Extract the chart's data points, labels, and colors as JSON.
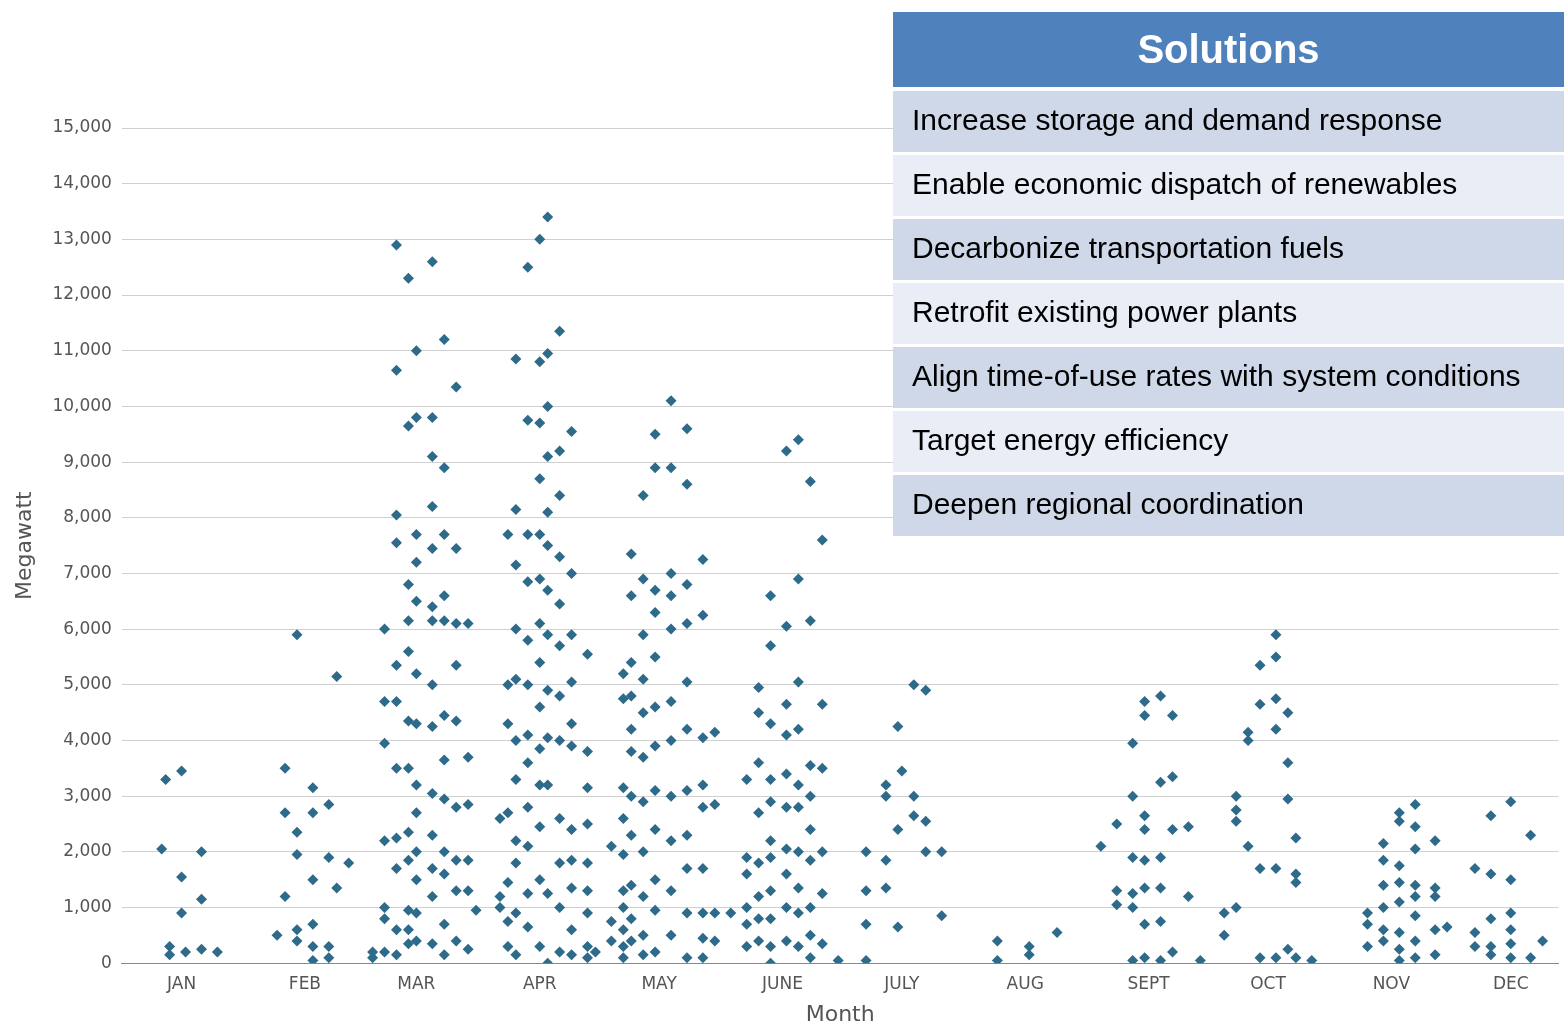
{
  "chart_data": [
    {
      "type": "scatter",
      "xlabel": "Month",
      "ylabel": "Megawatt",
      "xlim": [
        "--01-01",
        "--12-28"
      ],
      "ylim": [
        0,
        15000
      ],
      "xticks": [
        {
          "value": "--01-16",
          "label": "JAN"
        },
        {
          "value": "--02-16",
          "label": "FEB"
        },
        {
          "value": "--03-16",
          "label": "MAR"
        },
        {
          "value": "--04-16",
          "label": "APR"
        },
        {
          "value": "--05-16",
          "label": "MAY"
        },
        {
          "value": "--06-16",
          "label": "JUNE"
        },
        {
          "value": "--07-16",
          "label": "JULY"
        },
        {
          "value": "--08-16",
          "label": "AUG"
        },
        {
          "value": "--09-16",
          "label": "SEPT"
        },
        {
          "value": "--10-16",
          "label": "OCT"
        },
        {
          "value": "--11-16",
          "label": "NOV"
        },
        {
          "value": "--12-16",
          "label": "DEC"
        }
      ],
      "yticks": [
        {
          "value": 0,
          "label": "0"
        },
        {
          "value": 1000,
          "label": "1,000"
        },
        {
          "value": 2000,
          "label": "2,000"
        },
        {
          "value": 3000,
          "label": "3,000"
        },
        {
          "value": 4000,
          "label": "4,000"
        },
        {
          "value": 5000,
          "label": "5,000"
        },
        {
          "value": 6000,
          "label": "6,000"
        },
        {
          "value": 7000,
          "label": "7,000"
        },
        {
          "value": 8000,
          "label": "8,000"
        },
        {
          "value": 9000,
          "label": "9,000"
        },
        {
          "value": 10000,
          "label": "10,000"
        },
        {
          "value": 11000,
          "label": "11,000"
        },
        {
          "value": 12000,
          "label": "12,000"
        },
        {
          "value": 13000,
          "label": "13,000"
        },
        {
          "value": 14000,
          "label": "14,000"
        },
        {
          "value": 15000,
          "label": "15,000"
        }
      ],
      "grid": "y",
      "marker": "diamond",
      "legend": false,
      "series": [
        {
          "color": "#2e6a8a",
          "x": [
            "--01-11",
            "--01-12",
            "--01-16",
            "--01-13",
            "--01-13",
            "--01-16",
            "--01-16",
            "--01-17",
            "--01-21",
            "--01-21",
            "--01-21",
            "--01-25",
            "--02-09",
            "--02-11",
            "--02-11",
            "--02-11",
            "--02-14",
            "--02-14",
            "--02-14",
            "--02-14",
            "--02-14",
            "--02-18",
            "--02-18",
            "--02-18",
            "--02-18",
            "--02-18",
            "--02-18",
            "--02-22",
            "--02-22",
            "--02-22",
            "--02-22",
            "--02-24",
            "--02-24",
            "--02-27",
            "--03-05",
            "--03-05",
            "--03-08",
            "--03-08",
            "--03-08",
            "--03-08",
            "--03-08",
            "--03-08",
            "--03-08",
            "--03-11",
            "--03-11",
            "--03-11",
            "--03-11",
            "--03-11",
            "--03-11",
            "--03-11",
            "--03-11",
            "--03-11",
            "--03-11",
            "--03-11",
            "--03-14",
            "--03-14",
            "--03-14",
            "--03-14",
            "--03-14",
            "--03-14",
            "--03-14",
            "--03-14",
            "--03-14",
            "--03-14",
            "--03-14",
            "--03-14",
            "--03-16",
            "--03-16",
            "--03-16",
            "--03-16",
            "--03-16",
            "--03-16",
            "--03-16",
            "--03-16",
            "--03-16",
            "--03-16",
            "--03-16",
            "--03-16",
            "--03-16",
            "--03-20",
            "--03-20",
            "--03-20",
            "--03-20",
            "--03-20",
            "--03-20",
            "--03-20",
            "--03-20",
            "--03-20",
            "--03-20",
            "--03-20",
            "--03-20",
            "--03-20",
            "--03-20",
            "--03-23",
            "--03-23",
            "--03-23",
            "--03-23",
            "--03-23",
            "--03-23",
            "--03-23",
            "--03-23",
            "--03-23",
            "--03-23",
            "--03-23",
            "--03-23",
            "--03-26",
            "--03-26",
            "--03-26",
            "--03-26",
            "--03-26",
            "--03-26",
            "--03-26",
            "--03-26",
            "--03-26",
            "--03-29",
            "--03-29",
            "--03-29",
            "--03-29",
            "--03-29",
            "--03-29",
            "--03-31",
            "--04-06",
            "--04-06",
            "--04-06",
            "--04-08",
            "--04-08",
            "--04-08",
            "--04-08",
            "--04-08",
            "--04-08",
            "--04-08",
            "--04-10",
            "--04-10",
            "--04-10",
            "--04-10",
            "--04-10",
            "--04-10",
            "--04-10",
            "--04-10",
            "--04-10",
            "--04-10",
            "--04-10",
            "--04-13",
            "--04-13",
            "--04-13",
            "--04-13",
            "--04-13",
            "--04-13",
            "--04-13",
            "--04-13",
            "--04-13",
            "--04-13",
            "--04-13",
            "--04-13",
            "--04-16",
            "--04-16",
            "--04-16",
            "--04-16",
            "--04-16",
            "--04-16",
            "--04-16",
            "--04-16",
            "--04-16",
            "--04-16",
            "--04-16",
            "--04-16",
            "--04-16",
            "--04-16",
            "--04-18",
            "--04-18",
            "--04-18",
            "--04-18",
            "--04-18",
            "--04-18",
            "--04-18",
            "--04-18",
            "--04-18",
            "--04-18",
            "--04-18",
            "--04-18",
            "--04-18",
            "--04-21",
            "--04-21",
            "--04-21",
            "--04-21",
            "--04-21",
            "--04-21",
            "--04-21",
            "--04-21",
            "--04-21",
            "--04-21",
            "--04-21",
            "--04-21",
            "--04-24",
            "--04-24",
            "--04-24",
            "--04-24",
            "--04-24",
            "--04-24",
            "--04-24",
            "--04-24",
            "--04-24",
            "--04-24",
            "--04-24",
            "--04-28",
            "--04-28",
            "--04-28",
            "--04-28",
            "--04-28",
            "--04-28",
            "--04-28",
            "--04-28",
            "--04-28",
            "--04-30",
            "--05-04",
            "--05-04",
            "--05-04",
            "--05-07",
            "--05-07",
            "--05-07",
            "--05-07",
            "--05-07",
            "--05-07",
            "--05-07",
            "--05-07",
            "--05-07",
            "--05-07",
            "--05-09",
            "--05-09",
            "--05-09",
            "--05-09",
            "--05-09",
            "--05-09",
            "--05-09",
            "--05-09",
            "--05-09",
            "--05-09",
            "--05-09",
            "--05-12",
            "--05-12",
            "--05-12",
            "--05-12",
            "--05-12",
            "--05-12",
            "--05-12",
            "--05-12",
            "--05-12",
            "--05-12",
            "--05-12",
            "--05-15",
            "--05-15",
            "--05-15",
            "--05-15",
            "--05-15",
            "--05-15",
            "--05-15",
            "--05-15",
            "--05-15",
            "--05-15",
            "--05-15",
            "--05-15",
            "--05-19",
            "--05-19",
            "--05-19",
            "--05-19",
            "--05-19",
            "--05-19",
            "--05-19",
            "--05-19",
            "--05-19",
            "--05-19",
            "--05-19",
            "--05-23",
            "--05-23",
            "--05-23",
            "--05-23",
            "--05-23",
            "--05-23",
            "--05-23",
            "--05-23",
            "--05-23",
            "--05-23",
            "--05-23",
            "--05-27",
            "--05-27",
            "--05-27",
            "--05-27",
            "--05-27",
            "--05-27",
            "--05-27",
            "--05-27",
            "--05-27",
            "--05-30",
            "--05-30",
            "--05-30",
            "--05-30",
            "--06-03",
            "--06-07",
            "--06-07",
            "--06-07",
            "--06-07",
            "--06-07",
            "--06-07",
            "--06-10",
            "--06-10",
            "--06-10",
            "--06-10",
            "--06-10",
            "--06-10",
            "--06-10",
            "--06-10",
            "--06-13",
            "--06-13",
            "--06-13",
            "--06-13",
            "--06-13",
            "--06-13",
            "--06-13",
            "--06-13",
            "--06-13",
            "--06-13",
            "--06-13",
            "--06-17",
            "--06-17",
            "--06-17",
            "--06-17",
            "--06-17",
            "--06-17",
            "--06-17",
            "--06-17",
            "--06-17",
            "--06-17",
            "--06-20",
            "--06-20",
            "--06-20",
            "--06-20",
            "--06-20",
            "--06-20",
            "--06-20",
            "--06-20",
            "--06-20",
            "--06-20",
            "--06-23",
            "--06-23",
            "--06-23",
            "--06-23",
            "--06-23",
            "--06-23",
            "--06-23",
            "--06-23",
            "--06-23",
            "--06-26",
            "--06-26",
            "--06-26",
            "--06-26",
            "--06-26",
            "--06-26",
            "--06-30",
            "--07-07",
            "--07-07",
            "--07-07",
            "--07-07",
            "--07-12",
            "--07-12",
            "--07-12",
            "--07-12",
            "--07-15",
            "--07-15",
            "--07-15",
            "--07-16",
            "--07-19",
            "--07-19",
            "--07-19",
            "--07-22",
            "--07-22",
            "--07-22",
            "--07-26",
            "--07-26",
            "--08-09",
            "--08-09",
            "--08-17",
            "--08-17",
            "--08-24",
            "--09-04",
            "--09-08",
            "--09-08",
            "--09-08",
            "--09-12",
            "--09-12",
            "--09-12",
            "--09-12",
            "--09-12",
            "--09-12",
            "--09-15",
            "--09-15",
            "--09-15",
            "--09-15",
            "--09-15",
            "--09-15",
            "--09-15",
            "--09-15",
            "--09-19",
            "--09-19",
            "--09-19",
            "--09-19",
            "--09-19",
            "--09-19",
            "--09-22",
            "--09-22",
            "--09-22",
            "--09-22",
            "--09-26",
            "--09-26",
            "--09-29",
            "--10-05",
            "--10-05",
            "--10-08",
            "--10-08",
            "--10-08",
            "--10-08",
            "--10-11",
            "--10-11",
            "--10-11",
            "--10-14",
            "--10-14",
            "--10-14",
            "--10-14",
            "--10-18",
            "--10-18",
            "--10-18",
            "--10-18",
            "--10-18",
            "--10-18",
            "--10-21",
            "--10-21",
            "--10-21",
            "--10-21",
            "--10-23",
            "--10-23",
            "--10-23",
            "--10-23",
            "--10-27",
            "--11-10",
            "--11-10",
            "--11-10",
            "--11-14",
            "--11-14",
            "--11-14",
            "--11-14",
            "--11-14",
            "--11-14",
            "--11-18",
            "--11-18",
            "--11-18",
            "--11-18",
            "--11-18",
            "--11-18",
            "--11-18",
            "--11-18",
            "--11-22",
            "--11-22",
            "--11-22",
            "--11-22",
            "--11-22",
            "--11-22",
            "--11-22",
            "--11-22",
            "--11-27",
            "--11-27",
            "--11-27",
            "--11-27",
            "--11-27",
            "--11-30",
            "--12-07",
            "--12-07",
            "--12-07",
            "--12-11",
            "--12-11",
            "--12-11",
            "--12-11",
            "--12-11",
            "--12-16",
            "--12-16",
            "--12-16",
            "--12-16",
            "--12-16",
            "--12-16",
            "--12-21",
            "--12-21",
            "--12-24"
          ],
          "values": [
            2050,
            3300,
            3450,
            300,
            150,
            900,
            1550,
            200,
            2000,
            1150,
            250,
            200,
            500,
            3500,
            2700,
            1200,
            5900,
            2350,
            1950,
            600,
            400,
            3150,
            2700,
            1500,
            700,
            300,
            50,
            2850,
            1900,
            300,
            100,
            5150,
            1350,
            1800,
            100,
            200,
            6000,
            4700,
            3950,
            2200,
            1000,
            800,
            200,
            12900,
            10650,
            8050,
            7550,
            5350,
            4700,
            3500,
            2250,
            1700,
            600,
            150,
            12300,
            9650,
            6800,
            6150,
            5600,
            4350,
            3500,
            2350,
            1850,
            950,
            600,
            350,
            11000,
            9800,
            7700,
            7200,
            6500,
            5200,
            4300,
            3200,
            2700,
            2000,
            1500,
            900,
            400,
            12600,
            9800,
            9100,
            8200,
            7450,
            6400,
            6150,
            5000,
            4250,
            3050,
            2300,
            1700,
            1200,
            350,
            11200,
            8900,
            7700,
            6600,
            6150,
            4450,
            3650,
            2950,
            2000,
            1600,
            700,
            150,
            10350,
            7450,
            6100,
            5350,
            4350,
            2800,
            1850,
            1300,
            400,
            6100,
            3700,
            2850,
            1850,
            1300,
            250,
            950,
            2600,
            1200,
            1000,
            7700,
            5000,
            4300,
            2700,
            1450,
            750,
            300,
            10850,
            8150,
            7150,
            6000,
            5100,
            4000,
            3300,
            2200,
            1800,
            900,
            150,
            12500,
            9750,
            7700,
            6850,
            5800,
            5000,
            4100,
            3600,
            2800,
            2100,
            1250,
            650,
            13000,
            10800,
            9700,
            8700,
            7700,
            6900,
            6100,
            5400,
            4600,
            3850,
            3200,
            2450,
            1500,
            300,
            13400,
            10950,
            10000,
            9100,
            8100,
            7500,
            6700,
            5900,
            4900,
            4050,
            3200,
            1250,
            0,
            11350,
            9200,
            8400,
            7300,
            6450,
            5700,
            4800,
            4000,
            2600,
            1800,
            1000,
            200,
            9550,
            7000,
            5900,
            5050,
            4300,
            3900,
            2400,
            1850,
            1350,
            600,
            150,
            5550,
            3800,
            3150,
            2500,
            1800,
            1300,
            900,
            300,
            100,
            200,
            2100,
            750,
            400,
            5200,
            4750,
            3150,
            2600,
            1950,
            1300,
            1000,
            600,
            300,
            100,
            7350,
            6600,
            5400,
            4800,
            4200,
            3800,
            3000,
            2300,
            1400,
            800,
            400,
            8400,
            6900,
            5900,
            5100,
            4500,
            3700,
            2900,
            2000,
            1200,
            500,
            150,
            9500,
            8900,
            6700,
            6300,
            5500,
            4600,
            3900,
            3100,
            2400,
            1500,
            950,
            200,
            10100,
            8900,
            7000,
            6600,
            6000,
            4700,
            4000,
            3000,
            2200,
            1300,
            500,
            9600,
            8600,
            6800,
            6100,
            5050,
            4200,
            3100,
            2300,
            1700,
            900,
            100,
            7250,
            6250,
            4050,
            3200,
            2800,
            1700,
            900,
            450,
            100,
            4150,
            2850,
            900,
            400,
            900,
            3300,
            1900,
            1600,
            1000,
            700,
            300,
            4950,
            4500,
            3600,
            2700,
            1800,
            1200,
            800,
            400,
            6600,
            5700,
            4300,
            3300,
            2900,
            2200,
            1900,
            1300,
            800,
            300,
            0,
            9200,
            6050,
            4650,
            4100,
            3400,
            2800,
            2050,
            1600,
            1000,
            400,
            9400,
            6900,
            5050,
            4200,
            3200,
            2800,
            2000,
            1350,
            900,
            300,
            8650,
            6150,
            3550,
            3000,
            2400,
            1850,
            1000,
            500,
            100,
            7600,
            4650,
            3500,
            2000,
            1250,
            350,
            50,
            2000,
            1300,
            700,
            50,
            3200,
            3000,
            1850,
            1350,
            4250,
            2400,
            650,
            3450,
            5000,
            3000,
            2650,
            4900,
            2550,
            2000,
            2000,
            850,
            400,
            50,
            300,
            150,
            550,
            2100,
            2500,
            1300,
            1050,
            3950,
            3000,
            1900,
            1250,
            1000,
            50,
            4700,
            4450,
            2650,
            2400,
            1850,
            1350,
            700,
            100,
            4800,
            3250,
            1900,
            1350,
            750,
            50,
            4450,
            3350,
            2400,
            200,
            2450,
            1200,
            50,
            900,
            500,
            3000,
            2750,
            2550,
            1000,
            4150,
            4000,
            2100,
            5350,
            4650,
            1700,
            100,
            5900,
            5500,
            4750,
            4200,
            1700,
            100,
            4500,
            3600,
            2950,
            250,
            2250,
            1600,
            1450,
            100,
            50,
            900,
            700,
            300,
            2150,
            1850,
            1400,
            1000,
            600,
            400,
            2700,
            2550,
            1750,
            1450,
            1100,
            550,
            250,
            50,
            2850,
            2450,
            2050,
            1400,
            1200,
            850,
            400,
            100,
            2200,
            1350,
            1200,
            600,
            150,
            650,
            1700,
            550,
            300,
            2650,
            1600,
            800,
            300,
            150,
            2900,
            1500,
            900,
            600,
            350,
            100,
            2300,
            100,
            400
          ]
        }
      ]
    },
    {
      "type": "other",
      "title": "Solutions",
      "annotations": [
        "Increase storage and demand response",
        "Enable economic dispatch of renewables",
        "Decarbonize transportation fuels",
        "Retrofit existing power plants",
        "Align time-of-use rates with system conditions",
        "Target energy efficiency",
        "Deepen regional coordination"
      ]
    }
  ]
}
